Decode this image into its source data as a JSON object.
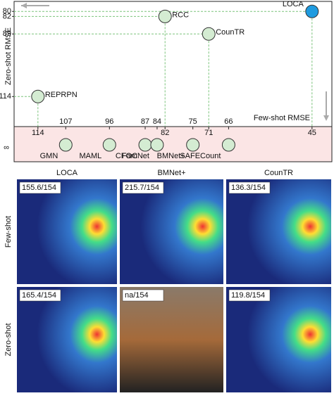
{
  "chart_data": {
    "type": "scatter",
    "x_label": "Few-shot RMSE",
    "y_label": "Zero-shot RMSE",
    "infinity_label": "∞",
    "xlim": [
      120,
      40
    ],
    "ylim": [
      126,
      76
    ],
    "xticks": [
      114,
      107,
      96,
      87,
      84,
      82,
      75,
      71,
      66,
      45
    ],
    "yticks": [
      80,
      82,
      89,
      114
    ],
    "points": [
      {
        "name": "LOCA",
        "x": 45,
        "y": 80,
        "color": "#1e9be0"
      },
      {
        "name": "RCC",
        "x": 82,
        "y": 82,
        "color": "#d4ecd2"
      },
      {
        "name": "CounTR",
        "x": 71,
        "y": 89,
        "color": "#d4ecd2"
      },
      {
        "name": "REPRPN",
        "x": 114,
        "y": 114,
        "color": "#d4ecd2"
      }
    ],
    "infinity_points": [
      {
        "name": "GMN",
        "x": 107
      },
      {
        "name": "MAML",
        "x": 96
      },
      {
        "name": "CFOC",
        "x": 87
      },
      {
        "name": "FamNet",
        "x": 84
      },
      {
        "name": "BMNet+",
        "x": 75
      },
      {
        "name": "SAFECount",
        "x": 66
      }
    ],
    "infinity_color": "#d4ecd2"
  },
  "panels": {
    "columns": [
      "LOCA",
      "BMNet+",
      "CounTR"
    ],
    "rows": [
      "Few-shot",
      "Zero-shot"
    ],
    "cells": [
      [
        "155.6/154",
        "215.7/154",
        "136.3/154"
      ],
      [
        "165.4/154",
        "na/154",
        "119.8/154"
      ]
    ]
  }
}
